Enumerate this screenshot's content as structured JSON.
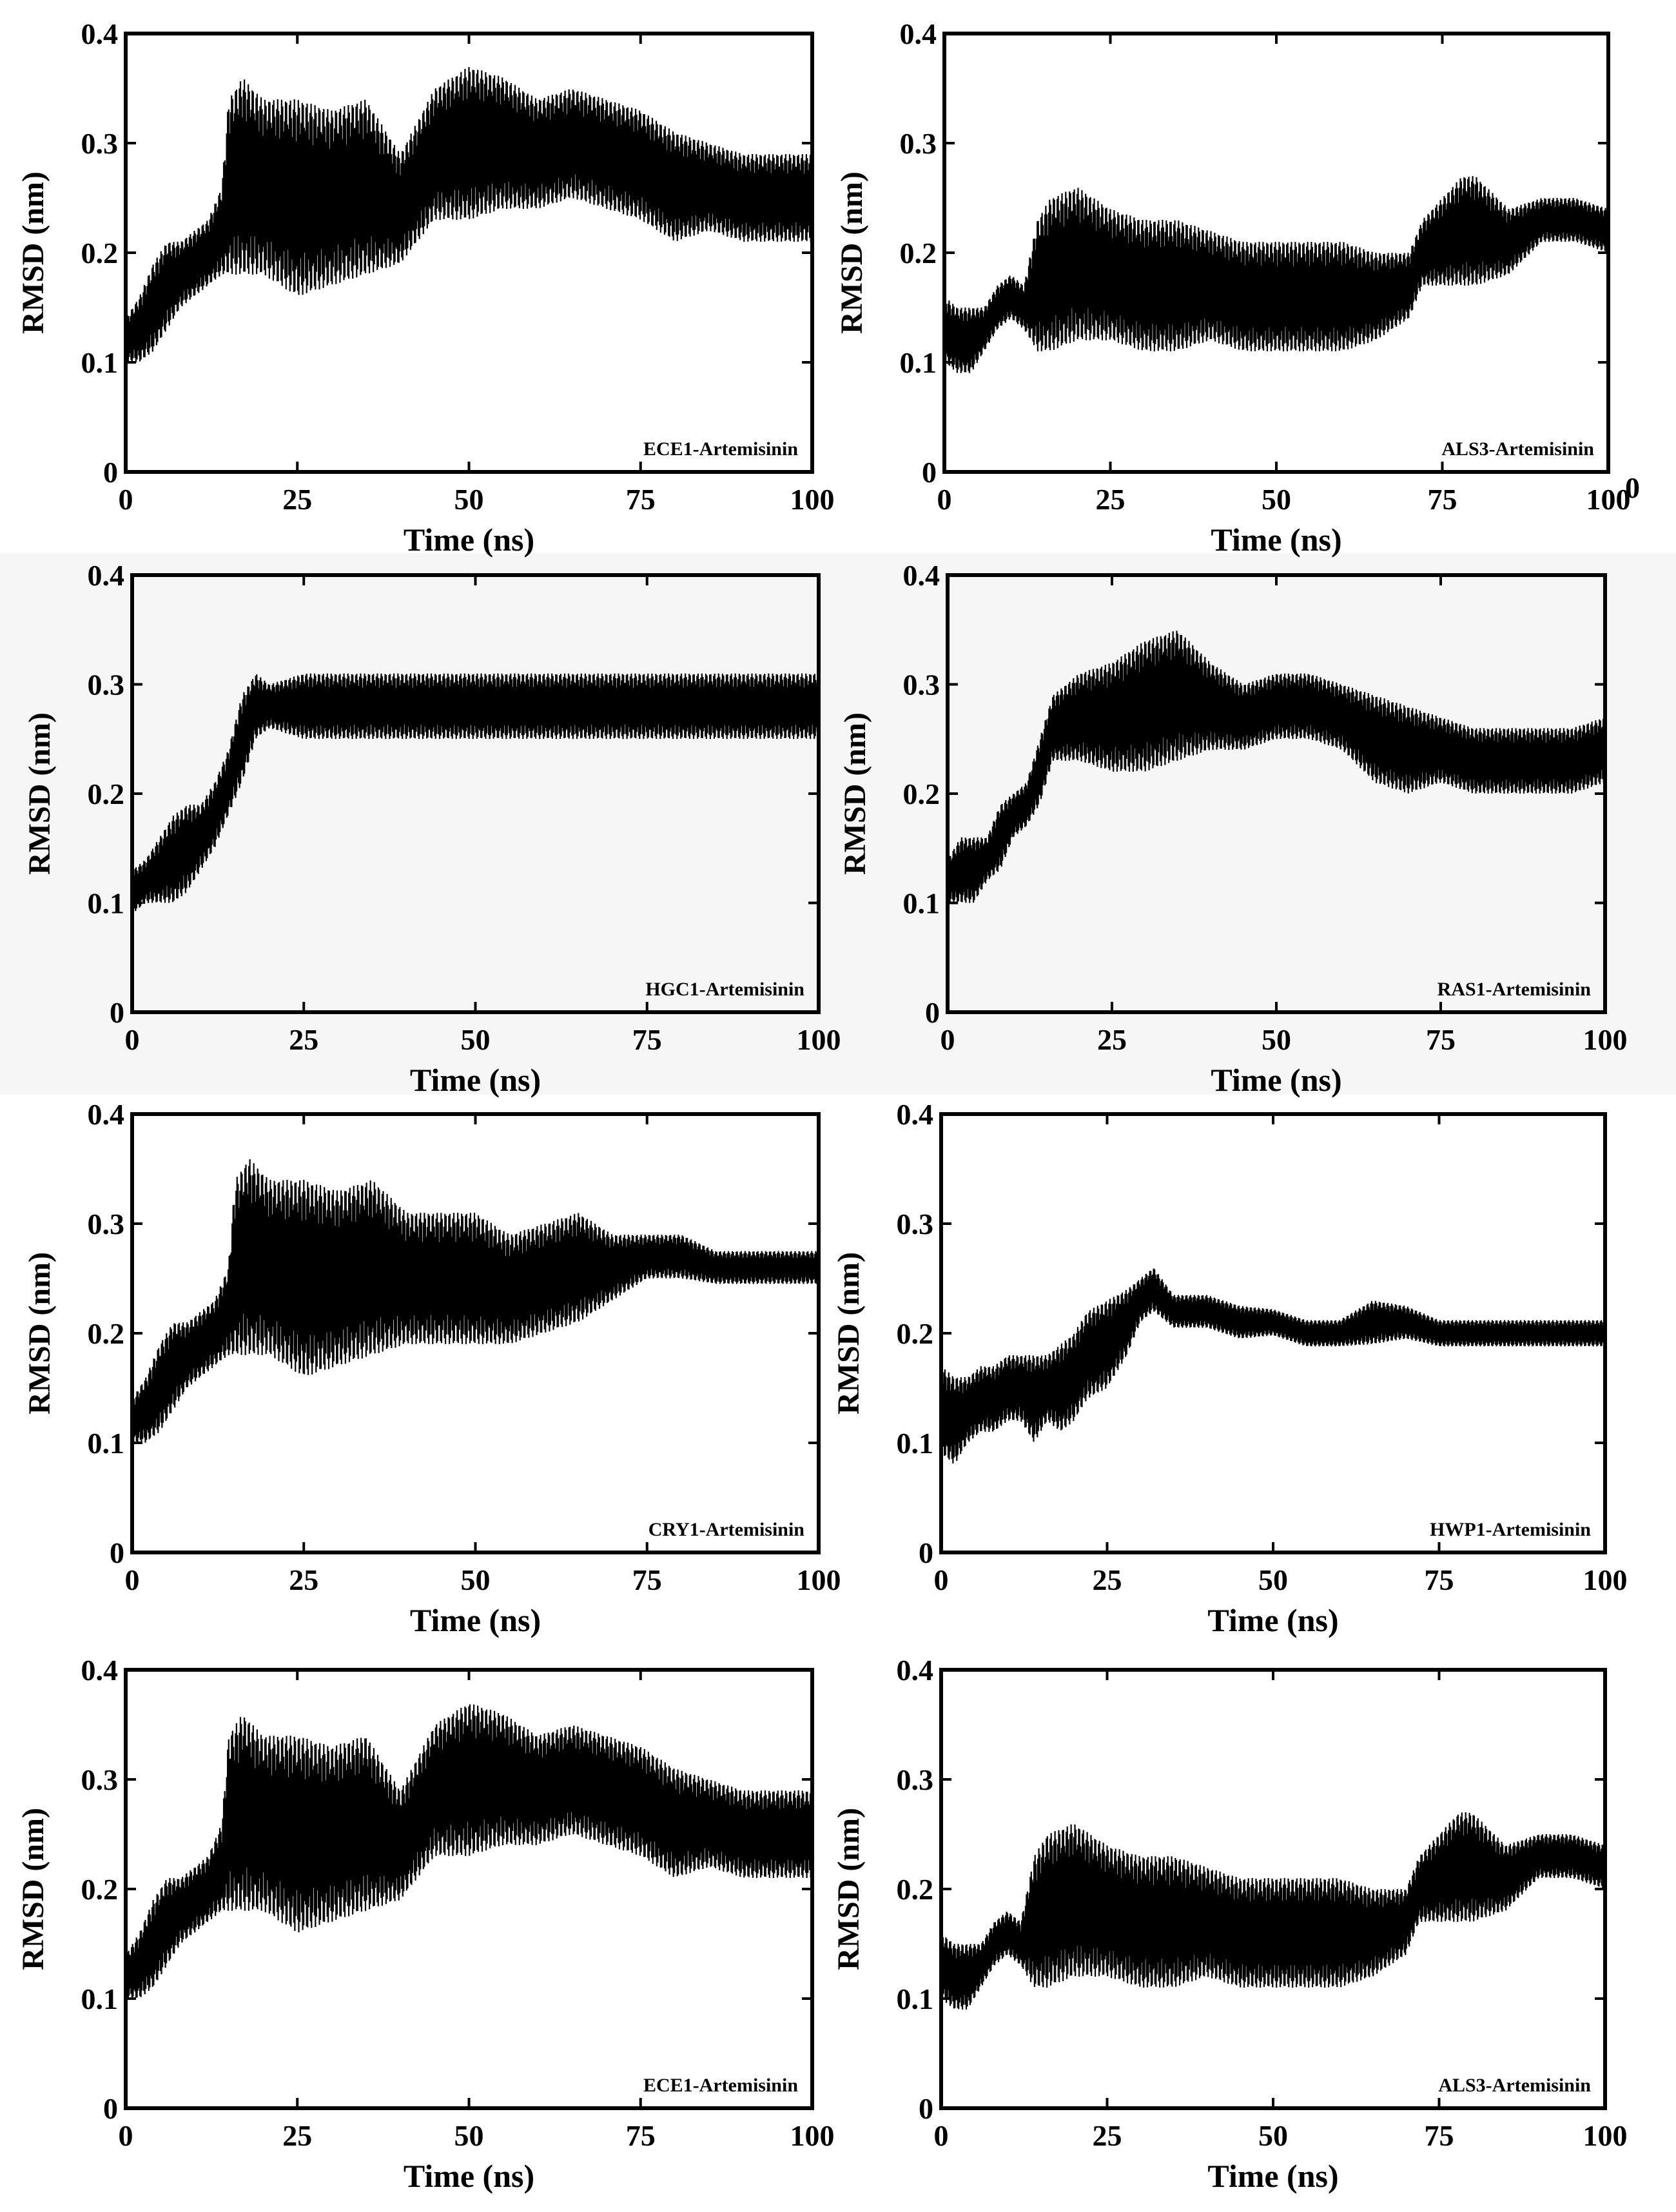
{
  "chart_data": [
    {
      "type": "line",
      "xlabel": "Time (ns)",
      "ylabel": "RMSD (nm)",
      "xlim": [
        0,
        100
      ],
      "ylim": [
        0,
        0.4
      ],
      "xticks": [
        "0",
        "25",
        "50",
        "75",
        "100"
      ],
      "yticks": [
        "0",
        "0.1",
        "0.2",
        "0.3",
        "0.4"
      ],
      "series": [
        {
          "name": "ECE1-Artemisinin",
          "x": [
            0,
            2,
            4,
            6,
            8,
            10,
            12,
            14,
            15,
            17,
            20,
            25,
            30,
            35,
            40,
            45,
            50,
            55,
            60,
            65,
            70,
            75,
            80,
            85,
            90,
            95,
            100
          ],
          "y": [
            0.12,
            0.13,
            0.15,
            0.17,
            0.18,
            0.19,
            0.2,
            0.22,
            0.26,
            0.27,
            0.26,
            0.25,
            0.25,
            0.26,
            0.24,
            0.29,
            0.3,
            0.3,
            0.29,
            0.3,
            0.29,
            0.28,
            0.26,
            0.26,
            0.25,
            0.25,
            0.25
          ],
          "amplitude": [
            0.02,
            0.03,
            0.04,
            0.04,
            0.03,
            0.03,
            0.03,
            0.04,
            0.08,
            0.09,
            0.08,
            0.09,
            0.08,
            0.08,
            0.05,
            0.06,
            0.07,
            0.06,
            0.05,
            0.05,
            0.05,
            0.05,
            0.05,
            0.04,
            0.04,
            0.04,
            0.04
          ]
        }
      ]
    },
    {
      "type": "line",
      "xlabel": "Time (ns)",
      "ylabel": "RMSD (nm)",
      "xlim": [
        0,
        100
      ],
      "ylim": [
        0,
        0.4
      ],
      "xticks": [
        "0",
        "25",
        "50",
        "75",
        "100"
      ],
      "yticks": [
        "0",
        "0.1",
        "0.2",
        "0.3",
        "0.4"
      ],
      "extra_label": "0",
      "series": [
        {
          "name": "ALS3-Artemisinin",
          "x": [
            0,
            2,
            4,
            6,
            8,
            10,
            12,
            14,
            16,
            20,
            25,
            30,
            35,
            40,
            45,
            50,
            55,
            60,
            65,
            70,
            72,
            75,
            78,
            80,
            85,
            90,
            95,
            100
          ],
          "y": [
            0.13,
            0.12,
            0.12,
            0.13,
            0.15,
            0.16,
            0.15,
            0.17,
            0.18,
            0.19,
            0.18,
            0.17,
            0.17,
            0.17,
            0.16,
            0.16,
            0.16,
            0.16,
            0.16,
            0.17,
            0.2,
            0.21,
            0.22,
            0.22,
            0.21,
            0.23,
            0.23,
            0.22
          ],
          "amplitude": [
            0.03,
            0.03,
            0.03,
            0.02,
            0.02,
            0.02,
            0.02,
            0.06,
            0.07,
            0.07,
            0.06,
            0.06,
            0.06,
            0.05,
            0.05,
            0.05,
            0.05,
            0.05,
            0.04,
            0.03,
            0.03,
            0.04,
            0.05,
            0.05,
            0.03,
            0.02,
            0.02,
            0.02
          ]
        }
      ]
    },
    {
      "type": "line",
      "xlabel": "Time (ns)",
      "ylabel": "RMSD (nm)",
      "xlim": [
        0,
        100
      ],
      "ylim": [
        0,
        0.4
      ],
      "xticks": [
        "0",
        "25",
        "50",
        "75",
        "100"
      ],
      "yticks": [
        "0",
        "0.1",
        "0.2",
        "0.3",
        "0.4"
      ],
      "series": [
        {
          "name": "HGC1-Artemisinin",
          "x": [
            0,
            2,
            4,
            6,
            8,
            10,
            12,
            14,
            16,
            18,
            20,
            25,
            30,
            35,
            40,
            45,
            50,
            55,
            60,
            65,
            70,
            75,
            80,
            85,
            90,
            95,
            100
          ],
          "y": [
            0.11,
            0.12,
            0.13,
            0.14,
            0.15,
            0.16,
            0.18,
            0.21,
            0.25,
            0.28,
            0.28,
            0.28,
            0.28,
            0.28,
            0.28,
            0.28,
            0.28,
            0.28,
            0.28,
            0.28,
            0.28,
            0.28,
            0.28,
            0.28,
            0.28,
            0.28,
            0.28
          ],
          "amplitude": [
            0.02,
            0.02,
            0.03,
            0.04,
            0.04,
            0.03,
            0.03,
            0.03,
            0.04,
            0.03,
            0.02,
            0.03,
            0.03,
            0.03,
            0.03,
            0.03,
            0.03,
            0.03,
            0.03,
            0.03,
            0.03,
            0.03,
            0.03,
            0.03,
            0.03,
            0.03,
            0.03
          ]
        }
      ]
    },
    {
      "type": "line",
      "xlabel": "Time (ns)",
      "ylabel": "RMSD (nm)",
      "xlim": [
        0,
        100
      ],
      "ylim": [
        0,
        0.4
      ],
      "xticks": [
        "0",
        "25",
        "50",
        "75",
        "100"
      ],
      "yticks": [
        "0",
        "0.1",
        "0.2",
        "0.3",
        "0.4"
      ],
      "series": [
        {
          "name": "RAS1-Artemisinin",
          "x": [
            0,
            2,
            4,
            6,
            8,
            10,
            12,
            14,
            16,
            20,
            25,
            30,
            35,
            40,
            45,
            50,
            55,
            60,
            65,
            70,
            75,
            80,
            85,
            90,
            95,
            100
          ],
          "y": [
            0.12,
            0.13,
            0.13,
            0.14,
            0.16,
            0.18,
            0.19,
            0.22,
            0.26,
            0.27,
            0.27,
            0.28,
            0.29,
            0.28,
            0.27,
            0.28,
            0.28,
            0.27,
            0.25,
            0.24,
            0.24,
            0.23,
            0.23,
            0.23,
            0.23,
            0.24
          ],
          "amplitude": [
            0.02,
            0.03,
            0.03,
            0.02,
            0.03,
            0.02,
            0.02,
            0.03,
            0.03,
            0.04,
            0.05,
            0.06,
            0.06,
            0.04,
            0.03,
            0.03,
            0.03,
            0.03,
            0.04,
            0.04,
            0.03,
            0.03,
            0.03,
            0.03,
            0.03,
            0.03
          ]
        }
      ]
    },
    {
      "type": "line",
      "xlabel": "Time (ns)",
      "ylabel": "RMSD (nm)",
      "xlim": [
        0,
        100
      ],
      "ylim": [
        0,
        0.4
      ],
      "xticks": [
        "0",
        "25",
        "50",
        "75",
        "100"
      ],
      "yticks": [
        "0",
        "0.1",
        "0.2",
        "0.3",
        "0.4"
      ],
      "series": [
        {
          "name": "CRY1-Artemisinin",
          "x": [
            0,
            2,
            4,
            6,
            8,
            10,
            12,
            14,
            15,
            17,
            20,
            25,
            30,
            35,
            40,
            45,
            50,
            55,
            60,
            65,
            70,
            75,
            80,
            85,
            90,
            95,
            100
          ],
          "y": [
            0.12,
            0.13,
            0.15,
            0.17,
            0.18,
            0.19,
            0.2,
            0.22,
            0.26,
            0.27,
            0.26,
            0.25,
            0.25,
            0.26,
            0.25,
            0.25,
            0.25,
            0.24,
            0.25,
            0.26,
            0.26,
            0.27,
            0.27,
            0.26,
            0.26,
            0.26,
            0.26
          ],
          "amplitude": [
            0.02,
            0.03,
            0.04,
            0.04,
            0.03,
            0.03,
            0.03,
            0.04,
            0.08,
            0.09,
            0.08,
            0.09,
            0.08,
            0.08,
            0.06,
            0.06,
            0.06,
            0.05,
            0.05,
            0.05,
            0.03,
            0.02,
            0.02,
            0.015,
            0.015,
            0.015,
            0.015
          ]
        }
      ]
    },
    {
      "type": "line",
      "xlabel": "Time (ns)",
      "ylabel": "RMSD (nm)",
      "xlim": [
        0,
        100
      ],
      "ylim": [
        0,
        0.4
      ],
      "xticks": [
        "0",
        "25",
        "50",
        "75",
        "100"
      ],
      "yticks": [
        "0",
        "0.1",
        "0.2",
        "0.3",
        "0.4"
      ],
      "series": [
        {
          "name": "HWP1-Artemisinin",
          "x": [
            0,
            2,
            4,
            6,
            8,
            10,
            12,
            14,
            16,
            18,
            20,
            22,
            25,
            28,
            30,
            32,
            35,
            40,
            45,
            50,
            55,
            60,
            65,
            70,
            75,
            80,
            85,
            90,
            95,
            100
          ],
          "y": [
            0.13,
            0.12,
            0.13,
            0.14,
            0.14,
            0.15,
            0.15,
            0.14,
            0.15,
            0.15,
            0.16,
            0.18,
            0.19,
            0.21,
            0.23,
            0.24,
            0.22,
            0.22,
            0.21,
            0.21,
            0.2,
            0.2,
            0.21,
            0.21,
            0.2,
            0.2,
            0.2,
            0.2,
            0.2,
            0.2
          ],
          "amplitude": [
            0.04,
            0.04,
            0.03,
            0.03,
            0.03,
            0.03,
            0.03,
            0.04,
            0.03,
            0.04,
            0.04,
            0.04,
            0.04,
            0.03,
            0.02,
            0.02,
            0.015,
            0.015,
            0.015,
            0.012,
            0.012,
            0.012,
            0.02,
            0.015,
            0.012,
            0.012,
            0.012,
            0.012,
            0.012,
            0.012
          ]
        }
      ]
    },
    {
      "type": "line",
      "xlabel": "Time (ns)",
      "ylabel": "RMSD (nm)",
      "xlim": [
        0,
        100
      ],
      "ylim": [
        0,
        0.4
      ],
      "xticks": [
        "0",
        "25",
        "50",
        "75",
        "100"
      ],
      "yticks": [
        "0",
        "0.1",
        "0.2",
        "0.3",
        "0.4"
      ],
      "series": [
        {
          "name": "ECE1-Artemisinin",
          "x": [
            0,
            2,
            4,
            6,
            8,
            10,
            12,
            14,
            15,
            17,
            20,
            25,
            30,
            35,
            40,
            45,
            50,
            55,
            60,
            65,
            70,
            75,
            80,
            85,
            90,
            95,
            100
          ],
          "y": [
            0.12,
            0.13,
            0.15,
            0.17,
            0.18,
            0.19,
            0.2,
            0.22,
            0.26,
            0.27,
            0.26,
            0.25,
            0.25,
            0.26,
            0.24,
            0.29,
            0.3,
            0.3,
            0.29,
            0.3,
            0.29,
            0.28,
            0.26,
            0.26,
            0.25,
            0.25,
            0.25
          ],
          "amplitude": [
            0.02,
            0.03,
            0.04,
            0.04,
            0.03,
            0.03,
            0.03,
            0.04,
            0.08,
            0.09,
            0.08,
            0.09,
            0.08,
            0.08,
            0.05,
            0.06,
            0.07,
            0.06,
            0.05,
            0.05,
            0.05,
            0.05,
            0.05,
            0.04,
            0.04,
            0.04,
            0.04
          ]
        }
      ]
    },
    {
      "type": "line",
      "xlabel": "Time (ns)",
      "ylabel": "RMSD (nm)",
      "xlim": [
        0,
        100
      ],
      "ylim": [
        0,
        0.4
      ],
      "xticks": [
        "0",
        "25",
        "50",
        "75",
        "100"
      ],
      "yticks": [
        "0",
        "0.1",
        "0.2",
        "0.3",
        "0.4"
      ],
      "series": [
        {
          "name": "ALS3-Artemisinin",
          "x": [
            0,
            2,
            4,
            6,
            8,
            10,
            12,
            14,
            16,
            20,
            25,
            30,
            35,
            40,
            45,
            50,
            55,
            60,
            65,
            70,
            72,
            75,
            78,
            80,
            85,
            90,
            95,
            100
          ],
          "y": [
            0.13,
            0.12,
            0.12,
            0.13,
            0.15,
            0.16,
            0.15,
            0.17,
            0.18,
            0.19,
            0.18,
            0.17,
            0.17,
            0.17,
            0.16,
            0.16,
            0.16,
            0.16,
            0.16,
            0.17,
            0.2,
            0.21,
            0.22,
            0.22,
            0.21,
            0.23,
            0.23,
            0.22
          ],
          "amplitude": [
            0.03,
            0.03,
            0.03,
            0.02,
            0.02,
            0.02,
            0.02,
            0.06,
            0.07,
            0.07,
            0.06,
            0.06,
            0.06,
            0.05,
            0.05,
            0.05,
            0.05,
            0.05,
            0.04,
            0.03,
            0.03,
            0.04,
            0.05,
            0.05,
            0.03,
            0.02,
            0.02,
            0.02
          ]
        }
      ]
    }
  ]
}
